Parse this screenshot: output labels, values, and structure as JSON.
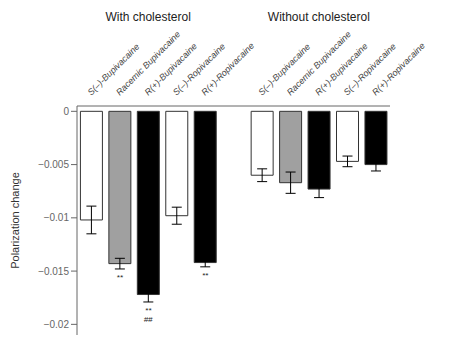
{
  "chart_data": [
    {
      "type": "bar",
      "title": "With cholesterol",
      "ylabel": "Polarization change",
      "categories": [
        "S(–)-Bupivacaine",
        "Racemic Bupivacaine",
        "R(+)-Bupivacaine",
        "S(–)-Ropivacaine",
        "R(+)-Ropivacaine"
      ],
      "values": [
        -0.0102,
        -0.0143,
        -0.0172,
        -0.0098,
        -0.0142
      ],
      "errors": [
        0.0013,
        0.0005,
        0.0007,
        0.0008,
        0.0004
      ],
      "colors": [
        "white",
        "#a0a0a0",
        "black",
        "white",
        "black"
      ],
      "annotations": [
        null,
        "**",
        "**\n##",
        null,
        "**"
      ],
      "ylim": [
        -0.021,
        0.0005
      ],
      "yticks": [
        0,
        {
          "value": -0.005,
          "label": "−0.005"
        },
        {
          "value": -0.01,
          "label": "−0.01"
        },
        {
          "value": -0.015,
          "label": "−0.015"
        },
        {
          "value": -0.02,
          "label": "−0.02"
        }
      ]
    },
    {
      "type": "bar",
      "title": "Without cholesterol",
      "categories": [
        "S(–)-Bupivacaine",
        "Racemic Bupivacaine",
        "R(+)-Bupivacaine",
        "S(–)-Ropivacaine",
        "R(+)-Ropivacaine"
      ],
      "values": [
        -0.006,
        -0.0067,
        -0.0073,
        -0.0047,
        -0.005
      ],
      "errors": [
        0.0006,
        0.001,
        0.0008,
        0.0005,
        0.0006
      ],
      "colors": [
        "white",
        "#a0a0a0",
        "black",
        "white",
        "black"
      ],
      "ylim": [
        -0.021,
        0.0005
      ],
      "yticks": [
        0,
        {
          "value": -0.005,
          "label": "−0.005"
        },
        {
          "value": -0.01,
          "label": "−0.01"
        },
        {
          "value": -0.015,
          "label": "−0.015"
        },
        {
          "value": -0.02,
          "label": "−0.02"
        }
      ]
    }
  ]
}
